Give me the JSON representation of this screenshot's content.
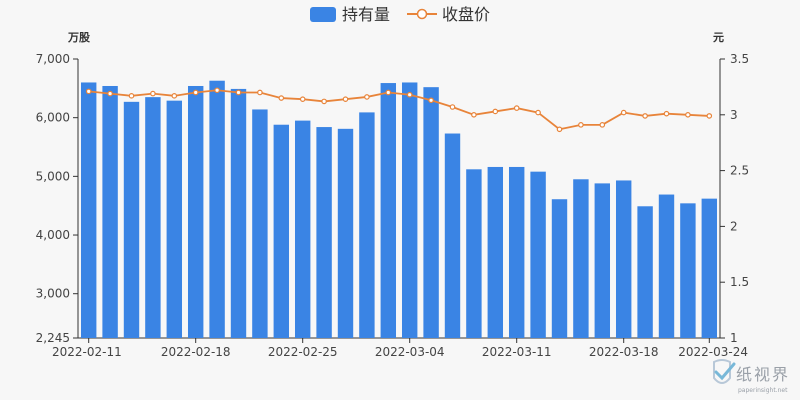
{
  "chart_data": {
    "type": "bar+line",
    "legend": {
      "placement": "top-center",
      "items": [
        {
          "name": "持有量",
          "type": "bar",
          "color": "#3a84e4"
        },
        {
          "name": "收盘价",
          "type": "line",
          "color": "#e8843a"
        }
      ]
    },
    "left_axis": {
      "unit": "万股",
      "min": 2245,
      "max": 7000,
      "tick_labels": [
        "2,245",
        "3,000",
        "4,000",
        "5,000",
        "6,000",
        "7,000"
      ],
      "tick_values": [
        2245,
        3000,
        4000,
        5000,
        6000,
        7000
      ]
    },
    "right_axis": {
      "unit": "元",
      "min": 1,
      "max": 3.5,
      "tick_labels": [
        "1",
        "1.5",
        "2",
        "2.5",
        "3",
        "3.5"
      ],
      "tick_values": [
        1,
        1.5,
        2,
        2.5,
        3,
        3.5
      ]
    },
    "x_tick_labels": [
      "2022-02-11",
      "2022-02-18",
      "2022-02-25",
      "2022-03-04",
      "2022-03-11",
      "2022-03-18",
      "2022-03-24"
    ],
    "x_tick_indices": [
      0,
      5,
      10,
      15,
      20,
      25,
      29
    ],
    "x": [
      "2022-02-11",
      "2022-02-14",
      "2022-02-15",
      "2022-02-16",
      "2022-02-17",
      "2022-02-18",
      "2022-02-21",
      "2022-02-22",
      "2022-02-23",
      "2022-02-24",
      "2022-02-25",
      "2022-02-28",
      "2022-03-01",
      "2022-03-02",
      "2022-03-03",
      "2022-03-04",
      "2022-03-07",
      "2022-03-08",
      "2022-03-09",
      "2022-03-10",
      "2022-03-11",
      "2022-03-14",
      "2022-03-15",
      "2022-03-16",
      "2022-03-17",
      "2022-03-18",
      "2022-03-21",
      "2022-03-22",
      "2022-03-23",
      "2022-03-24"
    ],
    "series": [
      {
        "name": "持有量",
        "type": "bar",
        "axis": "left",
        "values": [
          6600,
          6540,
          6270,
          6350,
          6290,
          6540,
          6630,
          6490,
          6140,
          5880,
          5950,
          5840,
          5810,
          6090,
          6590,
          6600,
          6520,
          5730,
          5120,
          5160,
          5160,
          5080,
          4610,
          4950,
          4880,
          4930,
          4490,
          4690,
          4540,
          4620
        ]
      },
      {
        "name": "收盘价",
        "type": "line",
        "axis": "right",
        "values": [
          3.21,
          3.19,
          3.17,
          3.19,
          3.17,
          3.2,
          3.22,
          3.2,
          3.2,
          3.15,
          3.14,
          3.12,
          3.14,
          3.16,
          3.2,
          3.18,
          3.13,
          3.07,
          3.0,
          3.03,
          3.06,
          3.02,
          2.87,
          2.91,
          2.91,
          3.02,
          2.99,
          3.01,
          3.0,
          2.99
        ]
      }
    ],
    "grid": false
  },
  "watermark": {
    "main": "纸视界",
    "sub": "paperinsight.net",
    "icon": "check-shield-icon",
    "color": "#9aa0a8"
  }
}
